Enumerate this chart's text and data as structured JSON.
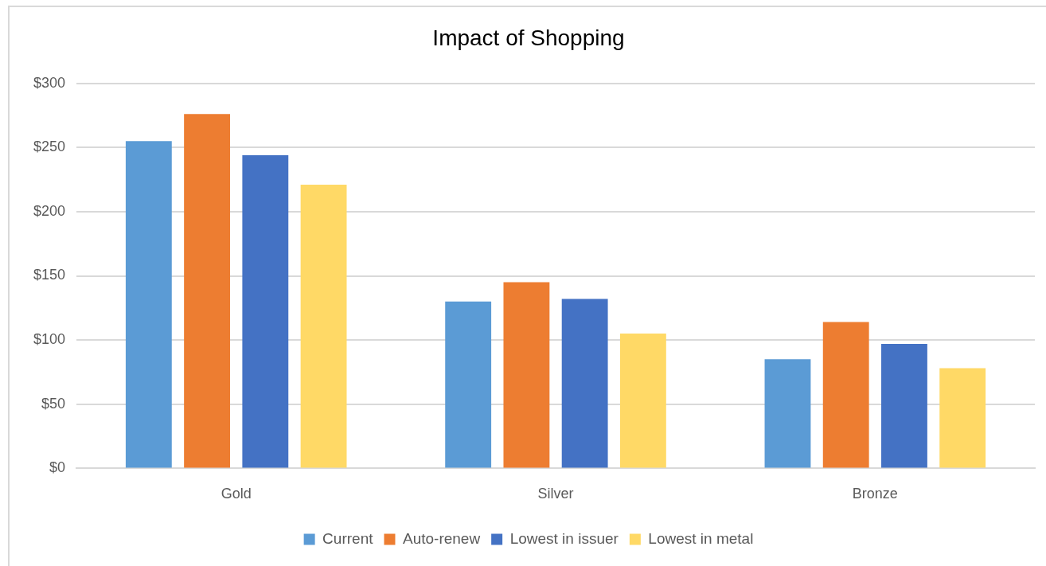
{
  "chart_data": {
    "type": "bar",
    "title": "Impact of Shopping",
    "categories": [
      "Gold",
      "Silver",
      "Bronze"
    ],
    "series": [
      {
        "name": "Current",
        "color": "#5b9bd5",
        "values": [
          255,
          130,
          85
        ]
      },
      {
        "name": "Auto-renew",
        "color": "#ed7d31",
        "values": [
          276,
          145,
          114
        ]
      },
      {
        "name": "Lowest in issuer",
        "color": "#4472c4",
        "values": [
          244,
          132,
          97
        ]
      },
      {
        "name": "Lowest in metal",
        "color": "#ffd966",
        "values": [
          221,
          105,
          78
        ]
      }
    ],
    "ylim": [
      0,
      300
    ],
    "yticks": [
      {
        "value": 0,
        "label": "$0"
      },
      {
        "value": 50,
        "label": "$50"
      },
      {
        "value": 100,
        "label": "$100"
      },
      {
        "value": 150,
        "label": "$150"
      },
      {
        "value": 200,
        "label": "$200"
      },
      {
        "value": 250,
        "label": "$250"
      },
      {
        "value": 300,
        "label": "$300"
      }
    ],
    "grid": "y",
    "legend": "bottom"
  }
}
